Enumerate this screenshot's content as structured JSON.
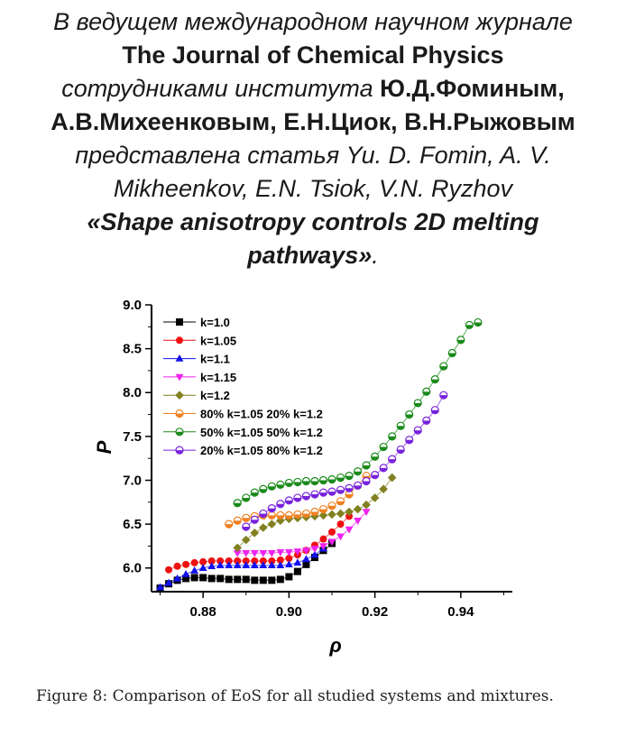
{
  "header": {
    "line1": "В ведущем международном научном журнале",
    "journal": "The Journal of Chemical Physics",
    "line3_prefix": "сотрудниками института",
    "line3_authors": "Ю.Д.Фоминым,",
    "line4_authors": "А.В.Михеенковым, Е.Н.Циок, В.Н.Рыжовым",
    "line5": "представлена статья Yu. D. Fomin, A. V.",
    "line6": "Mikheenkov, E.N. Tsiok, V.N. Ryzhov",
    "title_line1": "«Shape anisotropy controls 2D melting",
    "title_line2": "pathways»",
    "title_end": "."
  },
  "caption": "Figure 8:  Comparison of EoS for all studied systems and mixtures.",
  "chart_data": {
    "type": "scatter",
    "xlabel": "ρ",
    "ylabel": "P",
    "xlim": [
      0.868,
      0.952
    ],
    "ylim": [
      5.73,
      9.0
    ],
    "xticks": [
      "0.88",
      "0.90",
      "0.92",
      "0.94"
    ],
    "yticks": [
      "6.0",
      "6.5",
      "7.0",
      "7.5",
      "8.0",
      "8.5",
      "9.0"
    ],
    "legend_position": "top-left",
    "grid": false,
    "series": [
      {
        "name": "k=1.0",
        "marker": "square",
        "color": "#000000",
        "x": [
          0.87,
          0.872,
          0.874,
          0.876,
          0.878,
          0.88,
          0.882,
          0.884,
          0.886,
          0.888,
          0.89,
          0.892,
          0.894,
          0.896,
          0.898,
          0.9,
          0.902,
          0.904,
          0.906,
          0.908,
          0.91
        ],
        "y": [
          5.77,
          5.82,
          5.86,
          5.88,
          5.89,
          5.89,
          5.88,
          5.88,
          5.87,
          5.87,
          5.87,
          5.86,
          5.86,
          5.86,
          5.87,
          5.9,
          5.96,
          6.04,
          6.12,
          6.2,
          6.28
        ]
      },
      {
        "name": "k=1.05",
        "marker": "circle",
        "color": "#ee1111",
        "x": [
          0.872,
          0.874,
          0.876,
          0.878,
          0.88,
          0.882,
          0.884,
          0.886,
          0.888,
          0.89,
          0.892,
          0.894,
          0.896,
          0.898,
          0.9,
          0.902,
          0.904,
          0.906,
          0.908,
          0.91,
          0.912,
          0.914
        ],
        "y": [
          5.98,
          6.02,
          6.04,
          6.06,
          6.07,
          6.08,
          6.08,
          6.08,
          6.08,
          6.08,
          6.08,
          6.08,
          6.08,
          6.09,
          6.11,
          6.15,
          6.2,
          6.26,
          6.33,
          6.41,
          6.5,
          6.59
        ]
      },
      {
        "name": "k=1.1",
        "marker": "triangle-up",
        "color": "#1111ee",
        "x": [
          0.87,
          0.872,
          0.874,
          0.876,
          0.878,
          0.88,
          0.882,
          0.884,
          0.886,
          0.888,
          0.89,
          0.892,
          0.894,
          0.896,
          0.898,
          0.9,
          0.902,
          0.904,
          0.906,
          0.908
        ],
        "y": [
          5.78,
          5.83,
          5.88,
          5.93,
          5.97,
          6.0,
          6.02,
          6.03,
          6.03,
          6.03,
          6.03,
          6.03,
          6.03,
          6.03,
          6.03,
          6.04,
          6.06,
          6.1,
          6.15,
          6.22
        ]
      },
      {
        "name": "k=1.15",
        "marker": "triangle-down",
        "color": "#ee22ee",
        "x": [
          0.888,
          0.89,
          0.892,
          0.894,
          0.896,
          0.898,
          0.9,
          0.902,
          0.904,
          0.906,
          0.908,
          0.91,
          0.912,
          0.914,
          0.916,
          0.918
        ],
        "y": [
          6.17,
          6.17,
          6.17,
          6.17,
          6.17,
          6.18,
          6.18,
          6.19,
          6.2,
          6.22,
          6.25,
          6.3,
          6.36,
          6.44,
          6.54,
          6.64
        ]
      },
      {
        "name": "k=1.2",
        "marker": "diamond",
        "color": "#808020",
        "x": [
          0.888,
          0.89,
          0.892,
          0.894,
          0.896,
          0.898,
          0.9,
          0.902,
          0.904,
          0.906,
          0.908,
          0.91,
          0.912,
          0.914,
          0.916,
          0.918,
          0.92,
          0.922,
          0.924
        ],
        "y": [
          6.23,
          6.32,
          6.4,
          6.46,
          6.5,
          6.54,
          6.56,
          6.57,
          6.58,
          6.59,
          6.6,
          6.61,
          6.62,
          6.64,
          6.67,
          6.72,
          6.8,
          6.9,
          7.03
        ]
      },
      {
        "name": "80% k=1.05 20% k=1.2",
        "marker": "half-circle",
        "color": "#f08020",
        "x": [
          0.886,
          0.888,
          0.89,
          0.892,
          0.894,
          0.896,
          0.898,
          0.9,
          0.902,
          0.904,
          0.906,
          0.908,
          0.91,
          0.912,
          0.914,
          0.916,
          0.918
        ],
        "y": [
          6.5,
          6.54,
          6.57,
          6.59,
          6.6,
          6.6,
          6.6,
          6.6,
          6.61,
          6.62,
          6.64,
          6.67,
          6.71,
          6.76,
          6.84,
          6.94,
          7.05
        ]
      },
      {
        "name": "50% k=1.05 50% k=1.2",
        "marker": "half-circle",
        "color": "#1a8a1a",
        "x": [
          0.888,
          0.89,
          0.892,
          0.894,
          0.896,
          0.898,
          0.9,
          0.902,
          0.904,
          0.906,
          0.908,
          0.91,
          0.912,
          0.914,
          0.916,
          0.918,
          0.92,
          0.922,
          0.924,
          0.926,
          0.928,
          0.93,
          0.932,
          0.934,
          0.936,
          0.938,
          0.94,
          0.942,
          0.944
        ],
        "y": [
          6.74,
          6.8,
          6.86,
          6.9,
          6.93,
          6.95,
          6.97,
          6.98,
          6.99,
          6.99,
          7.0,
          7.01,
          7.03,
          7.05,
          7.1,
          7.17,
          7.27,
          7.38,
          7.5,
          7.62,
          7.75,
          7.88,
          8.01,
          8.15,
          8.3,
          8.45,
          8.6,
          8.77,
          8.8
        ]
      },
      {
        "name": "20% k=1.05 80% k=1.2",
        "marker": "half-circle",
        "color": "#7722dd",
        "x": [
          0.89,
          0.892,
          0.894,
          0.896,
          0.898,
          0.9,
          0.902,
          0.904,
          0.906,
          0.908,
          0.91,
          0.912,
          0.914,
          0.916,
          0.918,
          0.92,
          0.922,
          0.924,
          0.926,
          0.928,
          0.93,
          0.932,
          0.934,
          0.936
        ],
        "y": [
          6.47,
          6.55,
          6.62,
          6.68,
          6.73,
          6.77,
          6.8,
          6.82,
          6.84,
          6.86,
          6.87,
          6.89,
          6.91,
          6.94,
          6.99,
          7.06,
          7.14,
          7.24,
          7.35,
          7.46,
          7.57,
          7.68,
          7.8,
          7.97
        ]
      }
    ]
  }
}
